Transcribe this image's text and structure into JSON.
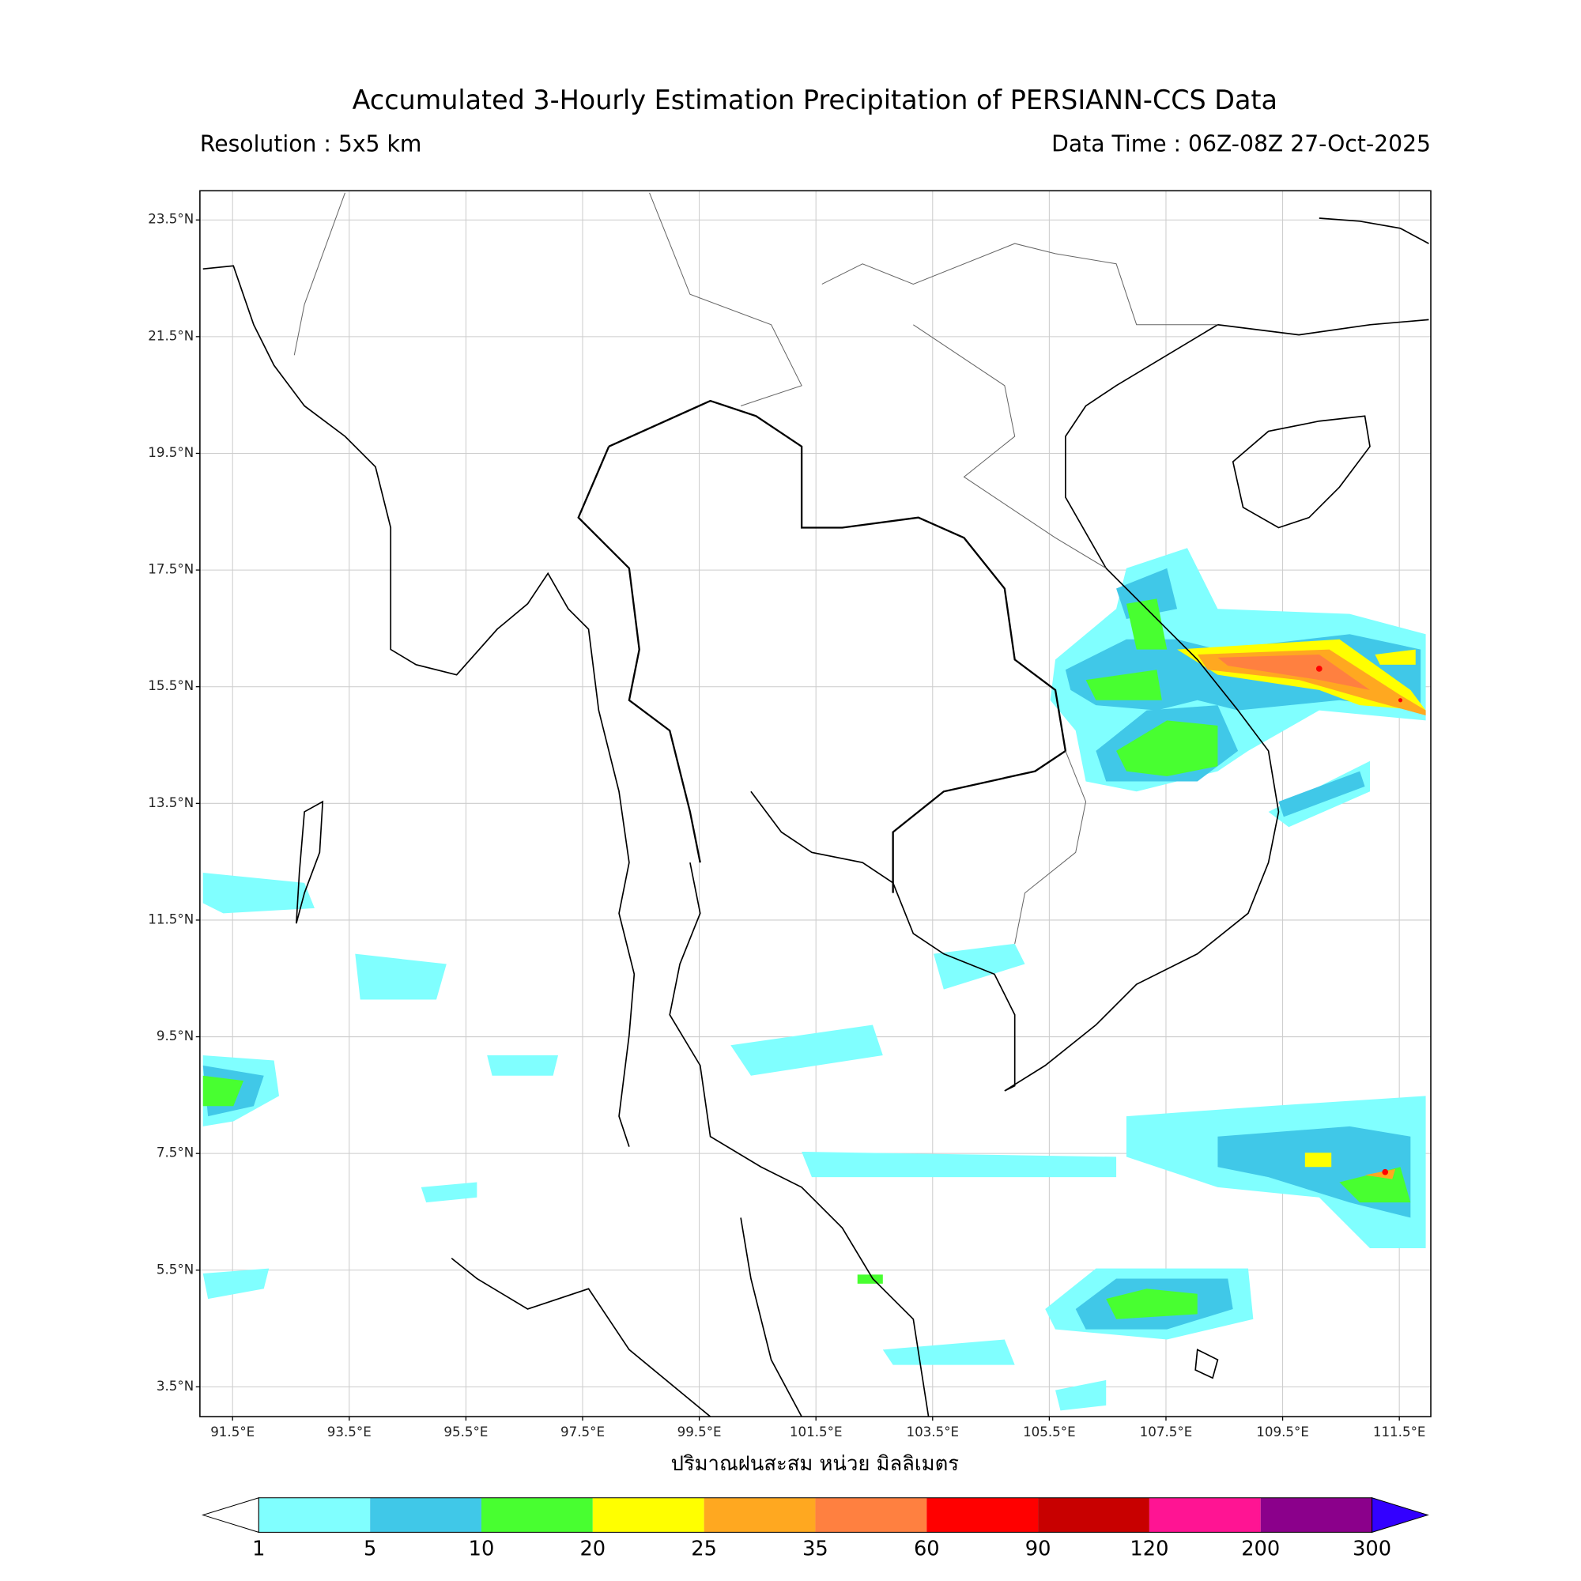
{
  "header": {
    "title": "Accumulated 3-Hourly Estimation Precipitation of PERSIANN-CCS Data",
    "resolution": "Resolution : 5x5 km",
    "data_time": "Data Time : 06Z-08Z 27-Oct-2025"
  },
  "map": {
    "lonlim": [
      90.94,
      112.04
    ],
    "latlim": [
      2.99,
      24.0
    ],
    "grid": true,
    "lonticks": [
      {
        "value": 91.5,
        "label": "91.5°E"
      },
      {
        "value": 93.5,
        "label": "93.5°E"
      },
      {
        "value": 95.5,
        "label": "95.5°E"
      },
      {
        "value": 97.5,
        "label": "97.5°E"
      },
      {
        "value": 99.5,
        "label": "99.5°E"
      },
      {
        "value": 101.5,
        "label": "101.5°E"
      },
      {
        "value": 103.5,
        "label": "103.5°E"
      },
      {
        "value": 105.5,
        "label": "105.5°E"
      },
      {
        "value": 107.5,
        "label": "107.5°E"
      },
      {
        "value": 109.5,
        "label": "109.5°E"
      },
      {
        "value": 111.5,
        "label": "111.5°E"
      }
    ],
    "latticks": [
      {
        "value": 3.5,
        "label": "3.5°N"
      },
      {
        "value": 5.5,
        "label": "5.5°N"
      },
      {
        "value": 7.5,
        "label": "7.5°N"
      },
      {
        "value": 9.5,
        "label": "9.5°N"
      },
      {
        "value": 11.5,
        "label": "11.5°N"
      },
      {
        "value": 13.5,
        "label": "13.5°N"
      },
      {
        "value": 15.5,
        "label": "15.5°N"
      },
      {
        "value": 17.5,
        "label": "17.5°N"
      },
      {
        "value": 19.5,
        "label": "19.5°N"
      },
      {
        "value": 21.5,
        "label": "21.5°N"
      },
      {
        "value": 23.5,
        "label": "23.5°N"
      }
    ],
    "xlabel": "ปริมาณฝนสะสม หน่วย มิลลิเมตร"
  },
  "colorbar": {
    "levels": [
      1,
      5,
      10,
      20,
      25,
      35,
      60,
      90,
      120,
      200,
      300
    ],
    "colors": [
      "#80ffff",
      "#40c8e8",
      "#48ff30",
      "#ffff00",
      "#ffa820",
      "#ff8040",
      "#ff0000",
      "#c80000",
      "#ff1493",
      "#8b008b"
    ],
    "under": "#ffffff",
    "over": "#3300ff"
  }
}
